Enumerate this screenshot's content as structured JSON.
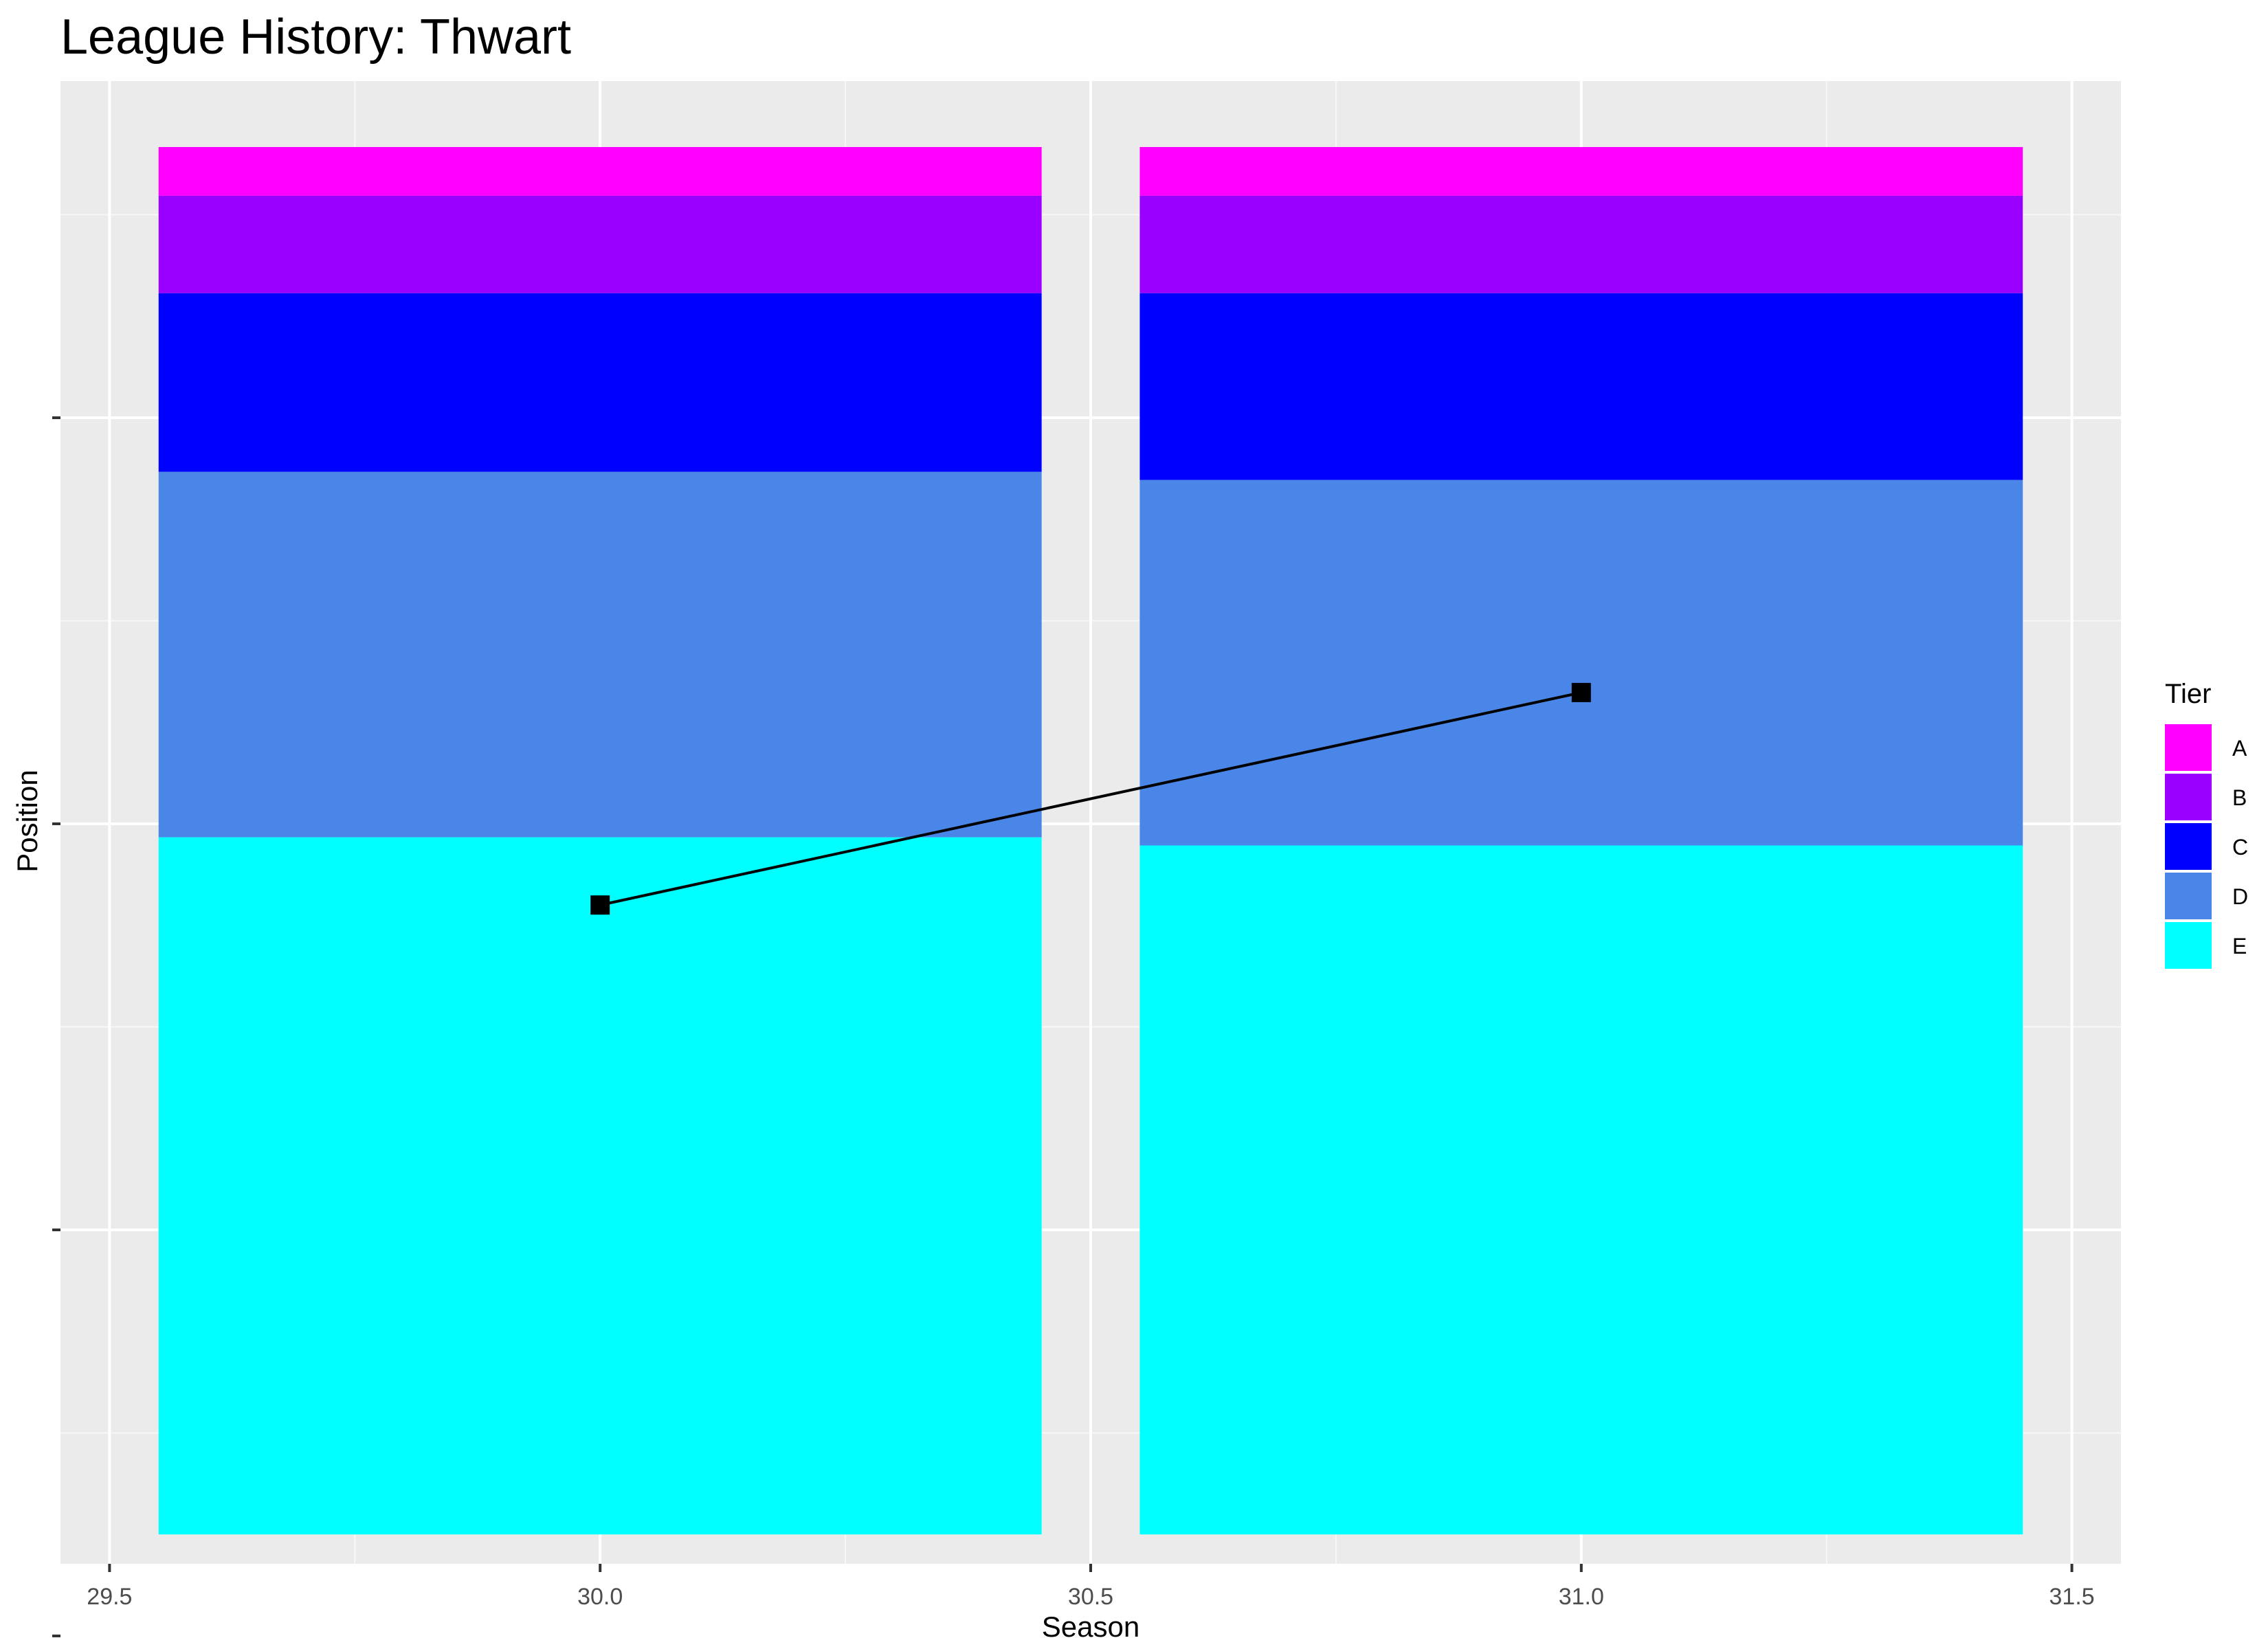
{
  "chart_data": {
    "type": "bar",
    "title": "League History: Thwart",
    "xlabel": "Season",
    "ylabel": "Position",
    "x_ticks": [
      "29.5",
      "30.0",
      "30.5",
      "31.0",
      "31.5"
    ],
    "x_tick_values": [
      29.5,
      30.0,
      30.5,
      31.0,
      31.5
    ],
    "xlim": [
      29.45,
      31.55
    ],
    "ylim": [
      0,
      100
    ],
    "y_tick_values": [
      20,
      50,
      80,
      110
    ],
    "y_minor_values": [
      5,
      35,
      65,
      95
    ],
    "grid": true,
    "panel_background": "#ebebeb",
    "legend": {
      "title": "Tier",
      "placement": "right",
      "entries": [
        {
          "label": "A",
          "color": "#ff00ff"
        },
        {
          "label": "B",
          "color": "#9900ff"
        },
        {
          "label": "C",
          "color": "#0000ff"
        },
        {
          "label": "D",
          "color": "#4a86e8"
        },
        {
          "label": "E",
          "color": "#00ffff"
        }
      ]
    },
    "bar_width": 0.9,
    "seasons": [
      {
        "season": 30,
        "segments": [
          {
            "tier": "A",
            "from": 0,
            "to": 3.6,
            "color": "#ff00ff"
          },
          {
            "tier": "B",
            "from": 3.6,
            "to": 10.8,
            "color": "#9900ff"
          },
          {
            "tier": "C",
            "from": 10.8,
            "to": 24.0,
            "color": "#0000ff"
          },
          {
            "tier": "D",
            "from": 24.0,
            "to": 51.0,
            "color": "#4a86e8"
          },
          {
            "tier": "E",
            "from": 51.0,
            "to": 102.5,
            "color": "#00ffff"
          }
        ]
      },
      {
        "season": 31,
        "segments": [
          {
            "tier": "A",
            "from": 0,
            "to": 3.6,
            "color": "#ff00ff"
          },
          {
            "tier": "B",
            "from": 3.6,
            "to": 10.8,
            "color": "#9900ff"
          },
          {
            "tier": "C",
            "from": 10.8,
            "to": 24.6,
            "color": "#0000ff"
          },
          {
            "tier": "D",
            "from": 24.6,
            "to": 51.6,
            "color": "#4a86e8"
          },
          {
            "tier": "E",
            "from": 51.6,
            "to": 102.5,
            "color": "#00ffff"
          }
        ]
      }
    ],
    "position_line": {
      "points": [
        {
          "x": 30.0,
          "y": 56.0
        },
        {
          "x": 31.0,
          "y": 40.3
        }
      ],
      "color": "#000000"
    }
  }
}
